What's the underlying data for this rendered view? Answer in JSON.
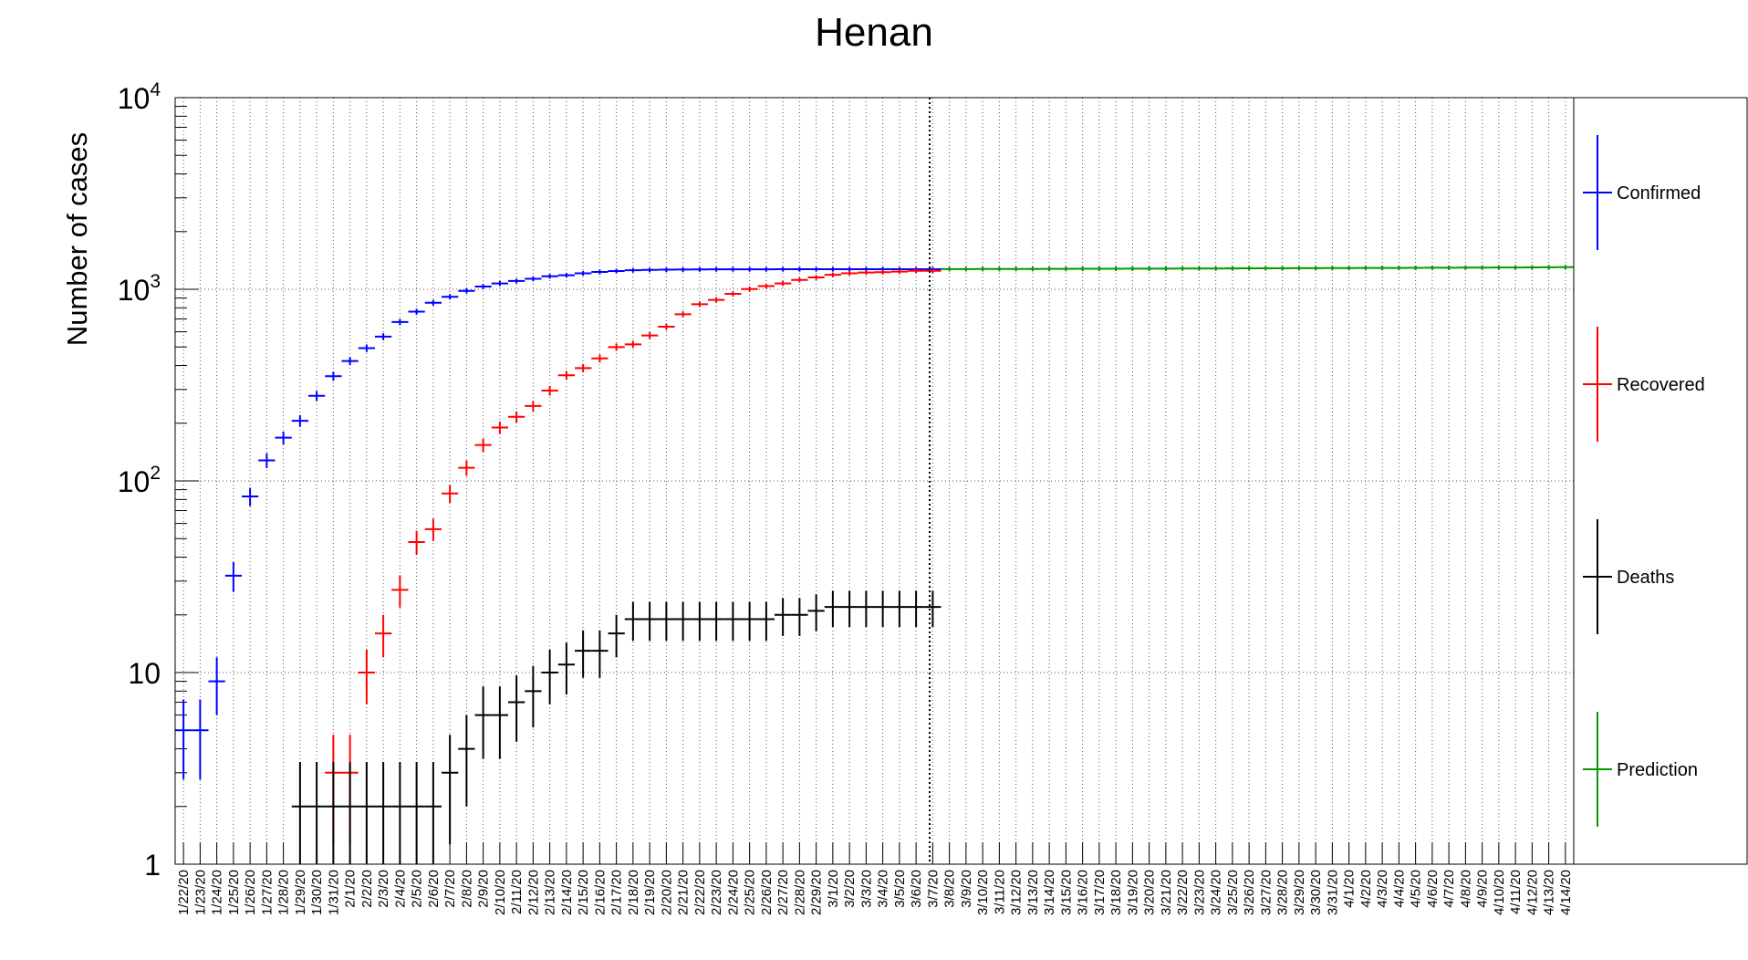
{
  "chart_data": {
    "type": "scatter",
    "title": "Henan",
    "ylabel": "Number of cases",
    "yscale": "log",
    "ylim": [
      1,
      10000
    ],
    "y_tick_labels": [
      "1",
      "10",
      "10^2",
      "10^3",
      "10^4"
    ],
    "grid": true,
    "legend_position": "right",
    "prediction_start": "3/8/20",
    "categories": [
      "1/22/20",
      "1/23/20",
      "1/24/20",
      "1/25/20",
      "1/26/20",
      "1/27/20",
      "1/28/20",
      "1/29/20",
      "1/30/20",
      "1/31/20",
      "2/1/20",
      "2/2/20",
      "2/3/20",
      "2/4/20",
      "2/5/20",
      "2/6/20",
      "2/7/20",
      "2/8/20",
      "2/9/20",
      "2/10/20",
      "2/11/20",
      "2/12/20",
      "2/13/20",
      "2/14/20",
      "2/15/20",
      "2/16/20",
      "2/17/20",
      "2/18/20",
      "2/19/20",
      "2/20/20",
      "2/21/20",
      "2/22/20",
      "2/23/20",
      "2/24/20",
      "2/25/20",
      "2/26/20",
      "2/27/20",
      "2/28/20",
      "2/29/20",
      "3/1/20",
      "3/2/20",
      "3/3/20",
      "3/4/20",
      "3/5/20",
      "3/6/20",
      "3/7/20",
      "3/8/20",
      "3/9/20",
      "3/10/20",
      "3/11/20",
      "3/12/20",
      "3/13/20",
      "3/14/20",
      "3/15/20",
      "3/16/20",
      "3/17/20",
      "3/18/20",
      "3/19/20",
      "3/20/20",
      "3/21/20",
      "3/22/20",
      "3/23/20",
      "3/24/20",
      "3/25/20",
      "3/26/20",
      "3/27/20",
      "3/28/20",
      "3/29/20",
      "3/30/20",
      "3/31/20",
      "4/1/20",
      "4/2/20",
      "4/3/20",
      "4/4/20",
      "4/5/20",
      "4/6/20",
      "4/7/20",
      "4/8/20",
      "4/9/20",
      "4/10/20",
      "4/11/20",
      "4/12/20",
      "4/13/20",
      "4/14/20"
    ],
    "series": [
      {
        "name": "Confirmed",
        "color": "#0000ff",
        "values": [
          5,
          5,
          9,
          32,
          83,
          128,
          168,
          206,
          278,
          352,
          422,
          493,
          566,
          675,
          764,
          851,
          914,
          981,
          1033,
          1073,
          1105,
          1135,
          1169,
          1184,
          1212,
          1231,
          1246,
          1257,
          1262,
          1265,
          1267,
          1270,
          1271,
          1271,
          1271,
          1271,
          1272,
          1272,
          1272,
          1272,
          1272,
          1272,
          1272,
          1272,
          1272,
          1272
        ]
      },
      {
        "name": "Recovered",
        "color": "#ff0000",
        "values": [
          null,
          null,
          null,
          null,
          null,
          null,
          null,
          0,
          0,
          3,
          3,
          10,
          16,
          27,
          48,
          56,
          86,
          117,
          154,
          190,
          216,
          246,
          296,
          356,
          388,
          436,
          499,
          516,
          574,
          638,
          741,
          836,
          880,
          947,
          1003,
          1039,
          1073,
          1119,
          1153,
          1190,
          1212,
          1223,
          1228,
          1236,
          1249,
          1249
        ]
      },
      {
        "name": "Deaths",
        "color": "#000000",
        "values": [
          null,
          null,
          null,
          null,
          0,
          0,
          0,
          2,
          2,
          2,
          2,
          2,
          2,
          2,
          2,
          2,
          3,
          4,
          6,
          6,
          7,
          8,
          10,
          11,
          13,
          13,
          16,
          19,
          19,
          19,
          19,
          19,
          19,
          19,
          19,
          19,
          20,
          20,
          21,
          22,
          22,
          22,
          22,
          22,
          22,
          22
        ]
      },
      {
        "name": "Prediction",
        "color": "#009900",
        "start_index": 46,
        "values": [
          1275,
          1275,
          1276,
          1276,
          1277,
          1277,
          1278,
          1278,
          1279,
          1280,
          1280,
          1281,
          1282,
          1282,
          1283,
          1284,
          1284,
          1285,
          1286,
          1287,
          1287,
          1288,
          1289,
          1290,
          1291,
          1292,
          1293,
          1293,
          1294,
          1295,
          1296,
          1297,
          1298,
          1299,
          1300,
          1301,
          1303,
          1305
        ]
      }
    ]
  }
}
